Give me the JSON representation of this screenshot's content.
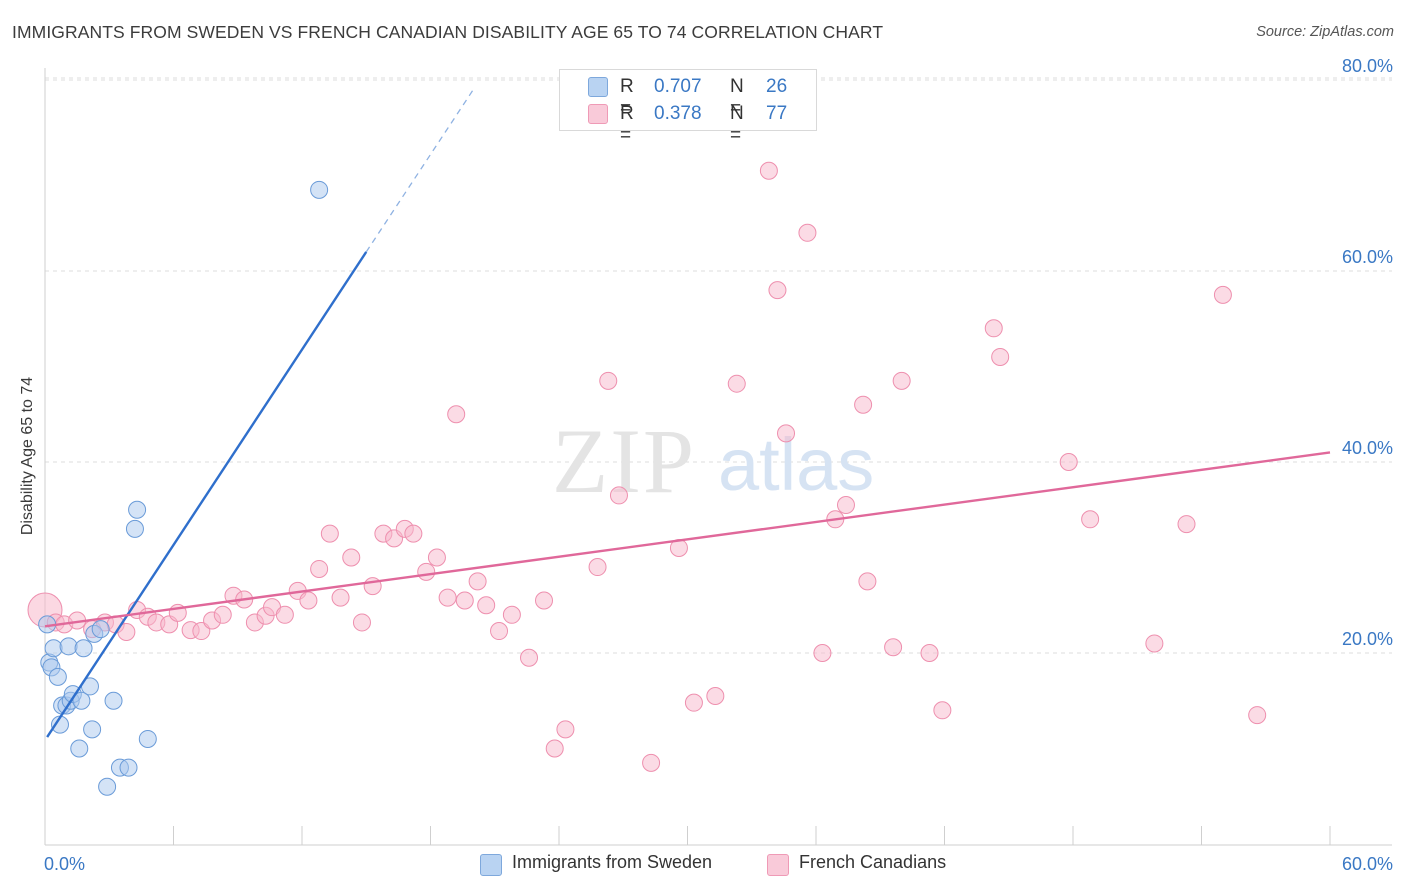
{
  "title": "IMMIGRANTS FROM SWEDEN VS FRENCH CANADIAN DISABILITY AGE 65 TO 74 CORRELATION CHART",
  "source": "Source: ZipAtlas.com",
  "watermark": {
    "zip": "ZIP",
    "atlas": "atlas"
  },
  "legend_top": [
    {
      "r_label": "R =",
      "r_value": "0.707",
      "n_label": "N =",
      "n_value": "26",
      "color": "#a9c8ee"
    },
    {
      "r_label": "R =",
      "r_value": "0.378",
      "n_label": "N =",
      "n_value": "77",
      "color": "#f7b8cb"
    }
  ],
  "chart_data": {
    "type": "scatter",
    "title": "IMMIGRANTS FROM SWEDEN VS FRENCH CANADIAN DISABILITY AGE 65 TO 74 CORRELATION CHART",
    "xlabel": "",
    "ylabel": "Disability Age 65 to 74",
    "xlim": [
      0,
      60
    ],
    "ylim": [
      0,
      85
    ],
    "x_tick_labels": [
      "0.0%",
      "60.0%"
    ],
    "y_tick_labels": [
      "20.0%",
      "40.0%",
      "60.0%",
      "80.0%"
    ],
    "y_ticks": [
      20,
      40,
      60,
      80
    ],
    "grid": true,
    "legend_position": "bottom",
    "series": [
      {
        "name": "Immigrants from Sweden",
        "color": "#a9c8ee",
        "stroke": "#6a9bd8",
        "line_color": "#2f6fcc",
        "trend": {
          "x0": 0.1,
          "y0": 11.2,
          "x1": 15.0,
          "y1": 62.0,
          "dash_to_x": 20.0,
          "dash_to_y": 79.0
        },
        "points": [
          [
            0.1,
            23.0
          ],
          [
            0.2,
            19.0
          ],
          [
            0.3,
            18.5
          ],
          [
            0.4,
            20.5
          ],
          [
            0.6,
            17.5
          ],
          [
            0.7,
            12.5
          ],
          [
            0.8,
            14.5
          ],
          [
            1.0,
            14.5
          ],
          [
            1.1,
            20.7
          ],
          [
            1.2,
            15.0
          ],
          [
            1.3,
            15.7
          ],
          [
            1.6,
            10.0
          ],
          [
            1.7,
            15.0
          ],
          [
            1.8,
            20.5
          ],
          [
            2.1,
            16.5
          ],
          [
            2.2,
            12.0
          ],
          [
            2.3,
            22.0
          ],
          [
            2.6,
            22.5
          ],
          [
            2.9,
            6.0
          ],
          [
            3.2,
            15.0
          ],
          [
            3.5,
            8.0
          ],
          [
            3.9,
            8.0
          ],
          [
            4.2,
            33.0
          ],
          [
            4.3,
            35.0
          ],
          [
            4.8,
            11.0
          ],
          [
            12.8,
            68.5
          ]
        ]
      },
      {
        "name": "French Canadians",
        "color": "#f7b8cb",
        "stroke": "#ee8fae",
        "line_color": "#e0689a",
        "trend": {
          "x0": 0.0,
          "y0": 22.8,
          "x1": 60.0,
          "y1": 41.0
        },
        "points": [
          [
            0.0,
            24.5
          ],
          [
            0.5,
            23.2
          ],
          [
            0.9,
            23.0
          ],
          [
            1.5,
            23.4
          ],
          [
            2.2,
            22.5
          ],
          [
            2.8,
            23.2
          ],
          [
            3.3,
            23.0
          ],
          [
            3.8,
            22.2
          ],
          [
            4.3,
            24.5
          ],
          [
            4.8,
            23.8
          ],
          [
            5.2,
            23.2
          ],
          [
            5.8,
            23.0
          ],
          [
            6.2,
            24.2
          ],
          [
            6.8,
            22.4
          ],
          [
            7.3,
            22.3
          ],
          [
            7.8,
            23.4
          ],
          [
            8.3,
            24.0
          ],
          [
            8.8,
            26.0
          ],
          [
            9.3,
            25.6
          ],
          [
            9.8,
            23.2
          ],
          [
            10.3,
            23.9
          ],
          [
            10.6,
            24.8
          ],
          [
            11.2,
            24.0
          ],
          [
            11.8,
            26.5
          ],
          [
            12.3,
            25.5
          ],
          [
            12.8,
            28.8
          ],
          [
            13.3,
            32.5
          ],
          [
            13.8,
            25.8
          ],
          [
            14.3,
            30.0
          ],
          [
            14.8,
            23.2
          ],
          [
            15.3,
            27.0
          ],
          [
            15.8,
            32.5
          ],
          [
            16.3,
            32.0
          ],
          [
            16.8,
            33.0
          ],
          [
            17.2,
            32.5
          ],
          [
            17.8,
            28.5
          ],
          [
            18.3,
            30.0
          ],
          [
            18.8,
            25.8
          ],
          [
            19.2,
            45.0
          ],
          [
            19.6,
            25.5
          ],
          [
            20.2,
            27.5
          ],
          [
            20.6,
            25.0
          ],
          [
            21.2,
            22.3
          ],
          [
            21.8,
            24.0
          ],
          [
            22.6,
            19.5
          ],
          [
            23.3,
            25.5
          ],
          [
            23.8,
            10.0
          ],
          [
            24.3,
            12.0
          ],
          [
            25.8,
            29.0
          ],
          [
            26.3,
            48.5
          ],
          [
            26.8,
            36.5
          ],
          [
            28.3,
            8.5
          ],
          [
            29.6,
            31.0
          ],
          [
            30.3,
            14.8
          ],
          [
            31.3,
            15.5
          ],
          [
            32.3,
            48.2
          ],
          [
            33.8,
            70.5
          ],
          [
            34.2,
            58.0
          ],
          [
            34.6,
            43.0
          ],
          [
            35.6,
            64.0
          ],
          [
            36.3,
            20.0
          ],
          [
            36.9,
            34.0
          ],
          [
            37.4,
            35.5
          ],
          [
            38.2,
            46.0
          ],
          [
            38.4,
            27.5
          ],
          [
            39.6,
            20.6
          ],
          [
            40.0,
            48.5
          ],
          [
            41.3,
            20.0
          ],
          [
            41.9,
            14.0
          ],
          [
            44.3,
            54.0
          ],
          [
            44.6,
            51.0
          ],
          [
            47.8,
            40.0
          ],
          [
            48.8,
            34.0
          ],
          [
            51.8,
            21.0
          ],
          [
            53.3,
            33.5
          ],
          [
            55.0,
            57.5
          ],
          [
            56.6,
            13.5
          ]
        ]
      }
    ]
  }
}
